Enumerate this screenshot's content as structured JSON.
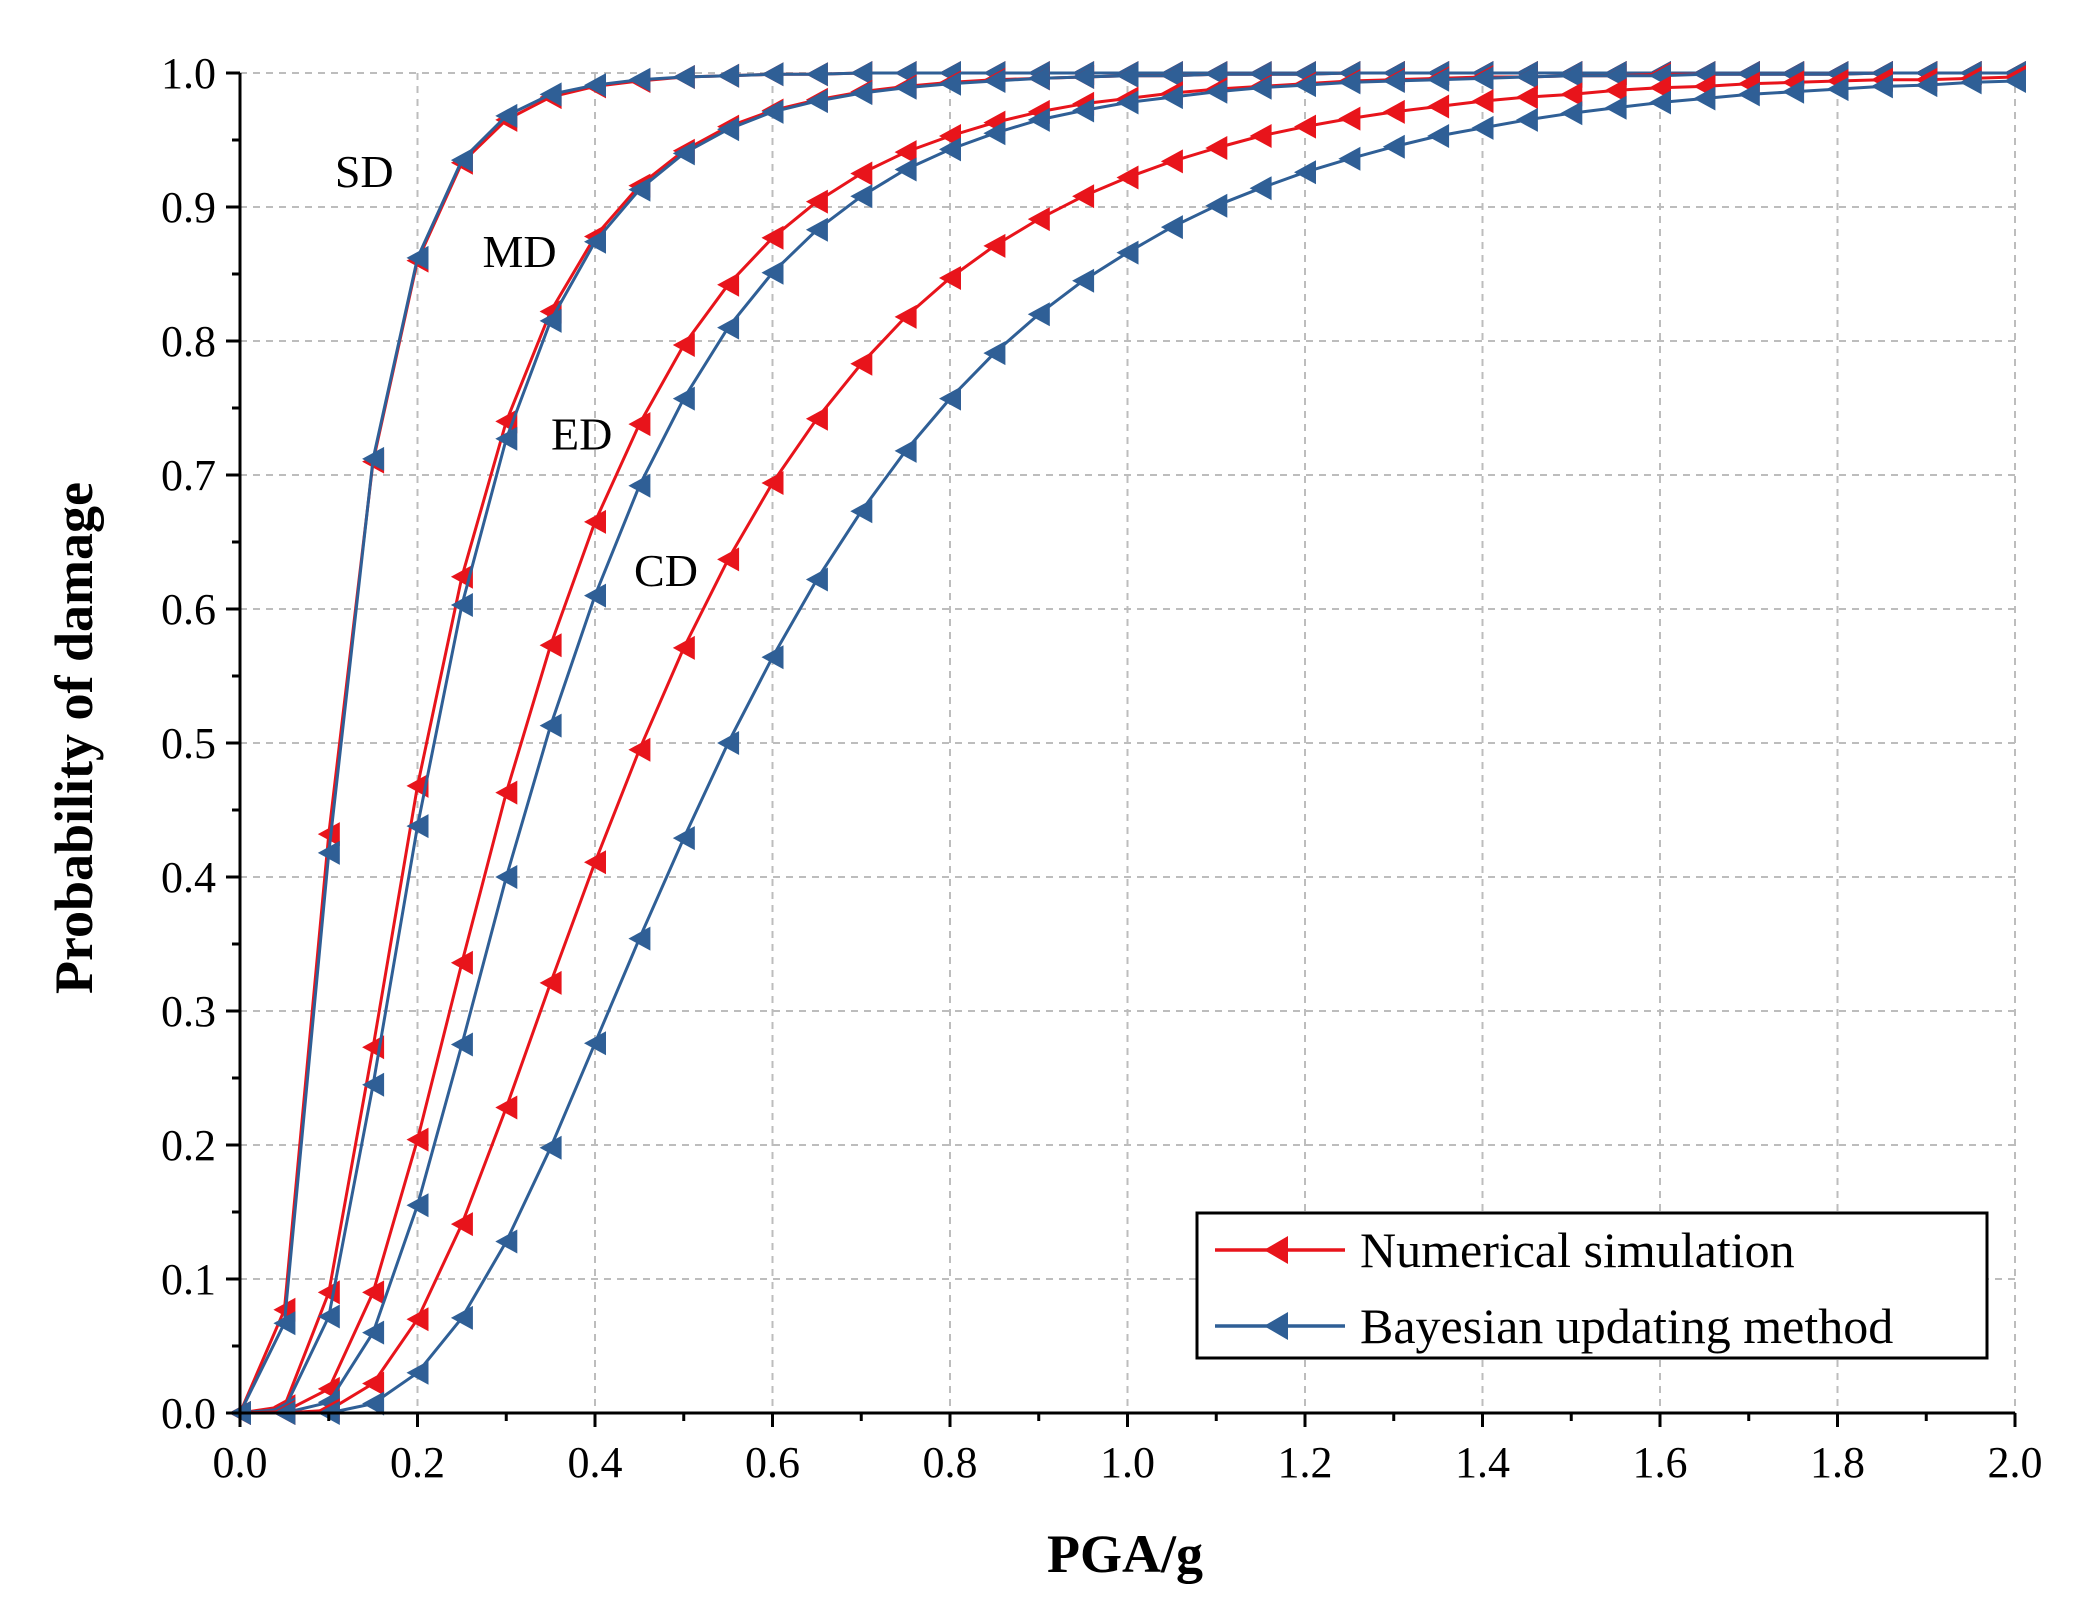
{
  "chart_data": {
    "type": "line",
    "xlabel": "PGA/g",
    "ylabel": "Probability of damage",
    "xlim": [
      0,
      2.0
    ],
    "ylim": [
      0,
      1.0
    ],
    "grid": true,
    "legend_position": "bottom-right",
    "xticks": [
      "0.0",
      "0.2",
      "0.4",
      "0.6",
      "0.8",
      "1.0",
      "1.2",
      "1.4",
      "1.6",
      "1.8",
      "2.0"
    ],
    "yticks": [
      "0.0",
      "0.1",
      "0.2",
      "0.3",
      "0.4",
      "0.5",
      "0.6",
      "0.7",
      "0.8",
      "0.9",
      "1.0"
    ],
    "x": [
      0,
      0.05,
      0.1,
      0.15,
      0.2,
      0.25,
      0.3,
      0.35,
      0.4,
      0.45,
      0.5,
      0.55,
      0.6,
      0.65,
      0.7,
      0.75,
      0.8,
      0.85,
      0.9,
      0.95,
      1.0,
      1.05,
      1.1,
      1.15,
      1.2,
      1.25,
      1.3,
      1.35,
      1.4,
      1.45,
      1.5,
      1.55,
      1.6,
      1.65,
      1.7,
      1.75,
      1.8,
      1.85,
      1.9,
      1.95,
      2.0
    ],
    "legend": [
      {
        "label": "Numerical simulation",
        "color": "#e8141b"
      },
      {
        "label": "Bayesian updating method",
        "color": "#2f5f96"
      }
    ],
    "curve_labels": [
      {
        "text": "SD",
        "x": 0.14,
        "y": 0.927
      },
      {
        "text": "MD",
        "x": 0.315,
        "y": 0.867
      },
      {
        "text": "ED",
        "x": 0.385,
        "y": 0.731
      },
      {
        "text": "CD",
        "x": 0.48,
        "y": 0.629
      }
    ],
    "series": [
      {
        "state": "SD",
        "legend_index": 0,
        "color": "#e8141b",
        "values": [
          0,
          0.077,
          0.432,
          0.71,
          0.86,
          0.933,
          0.965,
          0.982,
          0.99,
          0.994,
          0.997,
          0.998,
          0.999,
          0.999,
          1.0,
          1.0,
          1.0,
          1.0,
          1.0,
          1.0,
          1.0,
          1.0,
          1.0,
          1.0,
          1.0,
          1.0,
          1.0,
          1.0,
          1.0,
          1.0,
          1.0,
          1.0,
          1.0,
          1.0,
          1.0,
          1.0,
          1.0,
          1.0,
          1.0,
          1.0,
          1.0
        ]
      },
      {
        "state": "SD",
        "legend_index": 1,
        "color": "#2f5f96",
        "values": [
          0,
          0.067,
          0.418,
          0.712,
          0.862,
          0.935,
          0.968,
          0.984,
          0.991,
          0.995,
          0.997,
          0.998,
          0.999,
          0.999,
          1.0,
          1.0,
          1.0,
          1.0,
          1.0,
          1.0,
          1.0,
          1.0,
          1.0,
          1.0,
          1.0,
          1.0,
          1.0,
          1.0,
          1.0,
          1.0,
          1.0,
          1.0,
          1.0,
          1.0,
          1.0,
          1.0,
          1.0,
          1.0,
          1.0,
          1.0,
          1.0
        ]
      },
      {
        "state": "MD",
        "legend_index": 0,
        "color": "#e8141b",
        "values": [
          0,
          0.005,
          0.09,
          0.273,
          0.468,
          0.624,
          0.74,
          0.822,
          0.878,
          0.916,
          0.942,
          0.96,
          0.972,
          0.98,
          0.986,
          0.99,
          0.993,
          0.995,
          0.996,
          0.997,
          0.998,
          0.998,
          0.999,
          0.999,
          0.999,
          1.0,
          1.0,
          1.0,
          1.0,
          1.0,
          1.0,
          1.0,
          1.0,
          1.0,
          1.0,
          1.0,
          1.0,
          1.0,
          1.0,
          1.0,
          1.0
        ]
      },
      {
        "state": "MD",
        "legend_index": 1,
        "color": "#2f5f96",
        "values": [
          0,
          0.003,
          0.072,
          0.245,
          0.438,
          0.603,
          0.727,
          0.815,
          0.874,
          0.913,
          0.94,
          0.958,
          0.971,
          0.979,
          0.985,
          0.989,
          0.992,
          0.994,
          0.996,
          0.997,
          0.998,
          0.998,
          0.999,
          0.999,
          0.999,
          1.0,
          1.0,
          1.0,
          1.0,
          1.0,
          1.0,
          1.0,
          1.0,
          1.0,
          1.0,
          1.0,
          1.0,
          1.0,
          1.0,
          1.0,
          1.0
        ]
      },
      {
        "state": "ED",
        "legend_index": 0,
        "color": "#e8141b",
        "values": [
          0,
          0.001,
          0.018,
          0.09,
          0.204,
          0.336,
          0.463,
          0.573,
          0.665,
          0.738,
          0.797,
          0.842,
          0.877,
          0.904,
          0.925,
          0.941,
          0.953,
          0.963,
          0.971,
          0.977,
          0.981,
          0.985,
          0.988,
          0.99,
          0.992,
          0.994,
          0.995,
          0.996,
          0.997,
          0.997,
          0.998,
          0.998,
          0.999,
          0.999,
          0.999,
          0.999,
          0.999,
          1.0,
          1.0,
          1.0,
          1.0
        ]
      },
      {
        "state": "ED",
        "legend_index": 1,
        "color": "#2f5f96",
        "values": [
          0,
          0.0,
          0.008,
          0.06,
          0.155,
          0.275,
          0.4,
          0.513,
          0.61,
          0.692,
          0.757,
          0.81,
          0.851,
          0.883,
          0.908,
          0.928,
          0.943,
          0.955,
          0.965,
          0.972,
          0.978,
          0.982,
          0.986,
          0.989,
          0.991,
          0.993,
          0.994,
          0.995,
          0.996,
          0.997,
          0.998,
          0.998,
          0.998,
          0.999,
          0.999,
          0.999,
          0.999,
          1.0,
          1.0,
          1.0,
          1.0
        ]
      },
      {
        "state": "CD",
        "legend_index": 0,
        "color": "#e8141b",
        "values": [
          0,
          0.0,
          0.002,
          0.022,
          0.07,
          0.141,
          0.228,
          0.321,
          0.411,
          0.495,
          0.571,
          0.637,
          0.694,
          0.742,
          0.783,
          0.818,
          0.847,
          0.871,
          0.891,
          0.908,
          0.922,
          0.934,
          0.944,
          0.953,
          0.96,
          0.966,
          0.971,
          0.975,
          0.979,
          0.982,
          0.984,
          0.987,
          0.989,
          0.99,
          0.992,
          0.993,
          0.994,
          0.995,
          0.995,
          0.996,
          0.997
        ]
      },
      {
        "state": "CD",
        "legend_index": 1,
        "color": "#2f5f96",
        "values": [
          0,
          0.0,
          0.0,
          0.007,
          0.03,
          0.071,
          0.128,
          0.198,
          0.276,
          0.354,
          0.429,
          0.5,
          0.564,
          0.622,
          0.673,
          0.718,
          0.757,
          0.791,
          0.82,
          0.845,
          0.866,
          0.885,
          0.901,
          0.914,
          0.926,
          0.936,
          0.945,
          0.953,
          0.959,
          0.965,
          0.97,
          0.974,
          0.978,
          0.981,
          0.984,
          0.986,
          0.988,
          0.99,
          0.991,
          0.993,
          0.994
        ]
      }
    ]
  }
}
